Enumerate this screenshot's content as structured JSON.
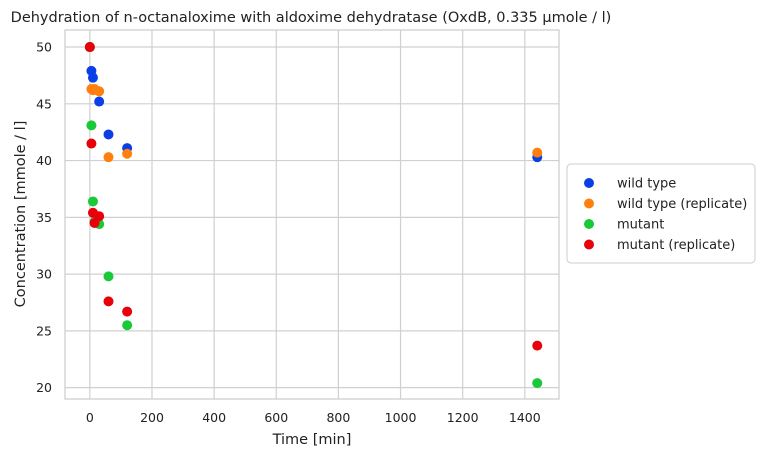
{
  "chart_data": {
    "type": "scatter",
    "title": "Dehydration of n-octanaloxime with aldoxime dehydratase (OxdB, 0.335 µmole / l)",
    "xlabel": "Time [min]",
    "ylabel": "Concentration [mmole / l]",
    "xlim": [
      -80,
      1510
    ],
    "ylim": [
      19,
      51.5
    ],
    "xticks": [
      0,
      200,
      400,
      600,
      800,
      1000,
      1200,
      1400
    ],
    "yticks": [
      20,
      25,
      30,
      35,
      40,
      45,
      50
    ],
    "grid": true,
    "legend_position": "right",
    "series": [
      {
        "name": "wild type",
        "color": "#0b3fe6",
        "x": [
          0,
          5,
          10,
          30,
          60,
          120,
          1440
        ],
        "y": [
          50.0,
          47.9,
          47.3,
          45.2,
          42.3,
          41.1,
          40.3
        ]
      },
      {
        "name": "wild type (replicate)",
        "color": "#ff7f0e",
        "x": [
          0,
          5,
          10,
          15,
          30,
          60,
          120,
          1440
        ],
        "y": [
          50.0,
          46.3,
          46.2,
          46.3,
          46.1,
          40.3,
          40.6,
          40.7
        ]
      },
      {
        "name": "mutant",
        "color": "#1ac938",
        "x": [
          0,
          5,
          10,
          15,
          30,
          60,
          120,
          1440
        ],
        "y": [
          50.0,
          43.1,
          36.4,
          34.6,
          34.4,
          29.8,
          25.5,
          20.4
        ]
      },
      {
        "name": "mutant (replicate)",
        "color": "#e8000b",
        "x": [
          0,
          5,
          10,
          15,
          30,
          60,
          120,
          1440
        ],
        "y": [
          50.0,
          41.5,
          35.4,
          34.5,
          35.1,
          27.6,
          26.7,
          23.7
        ]
      }
    ]
  }
}
